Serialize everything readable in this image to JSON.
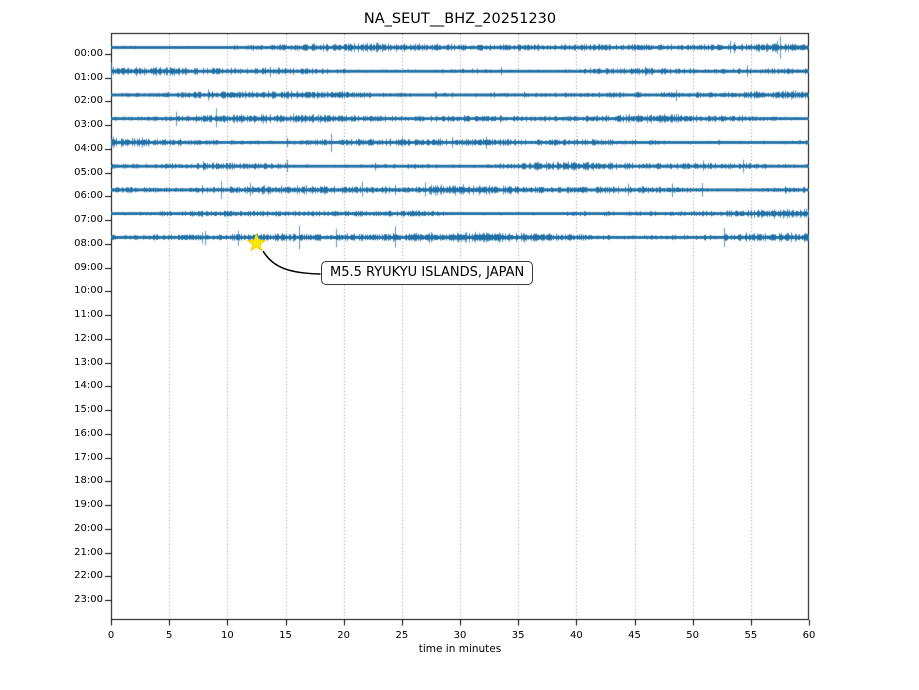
{
  "figure": {
    "title": "NA_SEUT__BHZ_20251230",
    "xlabel": "time in minutes",
    "background_color": "#ffffff",
    "frame_color": "#000000",
    "grid_color": "#8a8a8a",
    "trace_color": "#1b6da3",
    "star_color": "#ffe800",
    "star_edge_color": "#e0ca00",
    "arrow_color": "#000000",
    "annotation_border_color": "#3a3a3a",
    "text_color": "#000000"
  },
  "axes": {
    "x_tick_labels": [
      "0",
      "5",
      "10",
      "15",
      "20",
      "25",
      "30",
      "35",
      "40",
      "45",
      "50",
      "55",
      "60"
    ],
    "y_tick_labels": [
      "00:00",
      "01:00",
      "02:00",
      "03:00",
      "04:00",
      "05:00",
      "06:00",
      "07:00",
      "08:00",
      "09:00",
      "10:00",
      "11:00",
      "12:00",
      "13:00",
      "14:00",
      "15:00",
      "16:00",
      "17:00",
      "18:00",
      "19:00",
      "20:00",
      "21:00",
      "22:00",
      "23:00"
    ]
  },
  "annotation": {
    "label": "M5.5 RYUKYU ISLANDS, JAPAN"
  },
  "chart_data": {
    "type": "line",
    "subtype": "seismogram-dayplot",
    "title": "NA_SEUT__BHZ_20251230",
    "xlabel": "time in minutes",
    "ylabel": "",
    "x_range_minutes": [
      0,
      60
    ],
    "x_tick_interval_minutes": 5,
    "row_labels_hours": [
      "00:00",
      "01:00",
      "02:00",
      "03:00",
      "04:00",
      "05:00",
      "06:00",
      "07:00",
      "08:00",
      "09:00",
      "10:00",
      "11:00",
      "12:00",
      "13:00",
      "14:00",
      "15:00",
      "16:00",
      "17:00",
      "18:00",
      "19:00",
      "20:00",
      "21:00",
      "22:00",
      "23:00"
    ],
    "rows_with_signal": [
      "00:00",
      "01:00",
      "02:00",
      "03:00",
      "04:00",
      "05:00",
      "06:00",
      "07:00",
      "08:00"
    ],
    "rows_without_signal": [
      "09:00",
      "10:00",
      "11:00",
      "12:00",
      "13:00",
      "14:00",
      "15:00",
      "16:00",
      "17:00",
      "18:00",
      "19:00",
      "20:00",
      "21:00",
      "22:00",
      "23:00"
    ],
    "signal_description": "continuous broadband noise spanning full 0-60 minutes in each active row; no data after the 08:00 row",
    "row_relative_amplitude": [
      1.0,
      0.95,
      1.1,
      0.92,
      1.0,
      1.05,
      1.0,
      0.95,
      1.0
    ],
    "grid": "vertical dotted gridlines every 5 minutes",
    "legend": null,
    "event": {
      "label": "M5.5 RYUKYU ISLANDS, JAPAN",
      "row": "08:00",
      "minute": 12.5,
      "marker": "star",
      "marker_color": "yellow"
    }
  }
}
